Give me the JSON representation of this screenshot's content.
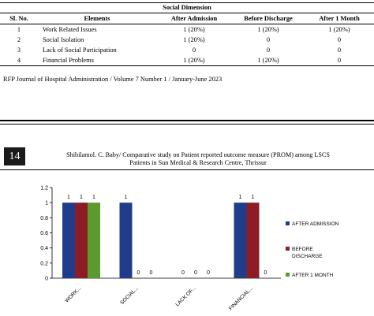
{
  "table": {
    "title": "Social Dimension",
    "headers": [
      "Sl. No.",
      "Elements",
      "After Admission",
      "Before Discharge",
      "After 1 Month"
    ],
    "rows": [
      [
        "1",
        "Work Related Issues",
        "1 (20%)",
        "1 (20%)",
        "1 (20%)"
      ],
      [
        "2",
        "Social Isolation",
        "1 (20%)",
        "0",
        "0"
      ],
      [
        "3",
        "Lack of Social Participation",
        "0",
        "0",
        "0"
      ],
      [
        "4",
        "Financial Problems",
        "1 (20%)",
        "1 (20%)",
        "0"
      ]
    ]
  },
  "journal_line": "RFP Journal of Hospital Administration / Volume 7 Number 1 / January-June 2023",
  "page_number": "14",
  "running_head": {
    "line1": "Shibilamol. C. Baby/ Comparative study on Patient reported outcome measure (PROM) among LSCS",
    "line2": "Patients in Sun Medical & Research Centre, Thrissur"
  },
  "chart_data": {
    "type": "bar",
    "categories": [
      "WORK...",
      "SOCIAL...",
      "LACK OF...",
      "FINANCIAL..."
    ],
    "series": [
      {
        "name": "AFTER ADMISSION",
        "values": [
          1,
          1,
          0,
          1
        ],
        "color": "#1f3d8a"
      },
      {
        "name": "BEFORE DISCHARGE",
        "values": [
          1,
          0,
          0,
          1
        ],
        "color": "#8e1c24"
      },
      {
        "name": "AFTER 1 MONTH",
        "values": [
          1,
          0,
          0,
          0
        ],
        "color": "#5a9a2e"
      }
    ],
    "ylim": [
      0,
      1.2
    ],
    "yticks": [
      "0",
      "0.2",
      "0.4",
      "0.6",
      "0.8",
      "1",
      "1.2"
    ],
    "data_labels": true,
    "legend_position": "right",
    "grid": false,
    "title": "",
    "xlabel": "",
    "ylabel": ""
  }
}
